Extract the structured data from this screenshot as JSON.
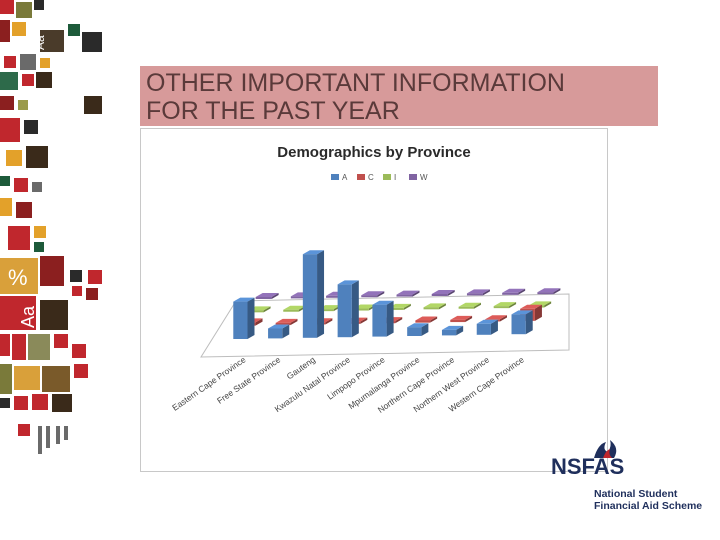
{
  "slide": {
    "title_line1": "OTHER IMPORTANT INFORMATION",
    "title_line2": "FOR THE PAST YEAR",
    "title_color": "#5a3a3a",
    "title_bg": "#d79a9a",
    "deco_text_1": "Aa",
    "deco_text_2": "%",
    "deco_text_3": "Aa"
  },
  "logo": {
    "brand": "NSFAS",
    "tagline_1": "National Student",
    "tagline_2": "Financial Aid Scheme",
    "color": "#1f2f5c",
    "accent": "#c0272d"
  },
  "chart_data": {
    "type": "bar",
    "variant": "3d-column",
    "title": "Demographics by Province",
    "categories": [
      "Eastern Cape Province",
      "Free State Province",
      "Gauteng",
      "Kwazulu Natal Province",
      "Limpopo Province",
      "Mpumalanga Province",
      "Northern Cape Province",
      "Northern West Province",
      "Western Cape Province"
    ],
    "series": [
      {
        "name": "A",
        "color": "#4f81bd",
        "values": [
          3.4,
          0.9,
          7.6,
          4.8,
          2.9,
          0.8,
          0.5,
          1.0,
          1.8
        ]
      },
      {
        "name": "C",
        "color": "#c0504d",
        "values": [
          0.3,
          0.2,
          0.2,
          0.2,
          0.2,
          0.2,
          0.2,
          0.2,
          1.1
        ]
      },
      {
        "name": "I",
        "color": "#9bbb59",
        "values": [
          0.1,
          0.1,
          0.1,
          0.1,
          0.1,
          0.1,
          0.1,
          0.1,
          0.2
        ]
      },
      {
        "name": "W",
        "color": "#8064a2",
        "values": [
          0.1,
          0.1,
          0.1,
          0.1,
          0.1,
          0.1,
          0.1,
          0.1,
          0.1
        ]
      }
    ],
    "legend_position": "top",
    "grid": false
  }
}
